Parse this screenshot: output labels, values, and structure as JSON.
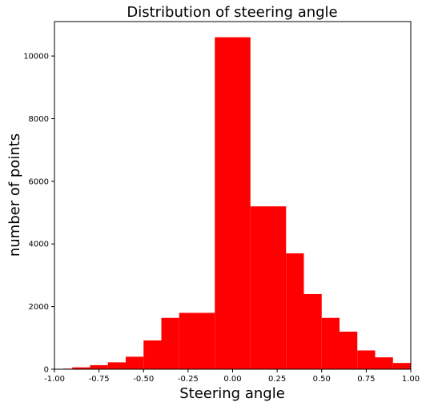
{
  "chart_data": {
    "type": "bar",
    "title": "Distribution of steering angle",
    "xlabel": "Steering angle",
    "ylabel": "number of points",
    "xlim": [
      -1.0,
      1.0
    ],
    "ylim": [
      0,
      11100
    ],
    "xticks": [
      "-1.00",
      "-0.75",
      "-0.50",
      "-0.25",
      "0.00",
      "0.25",
      "0.50",
      "0.75",
      "1.00"
    ],
    "yticks": [
      "0",
      "2000",
      "4000",
      "6000",
      "8000",
      "10000"
    ],
    "bar_color": "#ff0000",
    "grid": false,
    "bins": [
      {
        "x0": -1.0,
        "x1": -0.95,
        "value": 10
      },
      {
        "x0": -0.95,
        "x1": -0.9,
        "value": 20
      },
      {
        "x0": -0.9,
        "x1": -0.8,
        "value": 60
      },
      {
        "x0": -0.8,
        "x1": -0.7,
        "value": 130
      },
      {
        "x0": -0.7,
        "x1": -0.6,
        "value": 220
      },
      {
        "x0": -0.6,
        "x1": -0.5,
        "value": 400
      },
      {
        "x0": -0.5,
        "x1": -0.4,
        "value": 920
      },
      {
        "x0": -0.4,
        "x1": -0.3,
        "value": 1640
      },
      {
        "x0": -0.3,
        "x1": -0.2,
        "value": 1800
      },
      {
        "x0": -0.2,
        "x1": -0.1,
        "value": 1800
      },
      {
        "x0": -0.1,
        "x1": 0.1,
        "value": 10600
      },
      {
        "x0": 0.1,
        "x1": 0.2,
        "value": 5200
      },
      {
        "x0": 0.2,
        "x1": 0.3,
        "value": 5200
      },
      {
        "x0": 0.3,
        "x1": 0.4,
        "value": 3700
      },
      {
        "x0": 0.4,
        "x1": 0.5,
        "value": 2400
      },
      {
        "x0": 0.5,
        "x1": 0.6,
        "value": 1640
      },
      {
        "x0": 0.6,
        "x1": 0.7,
        "value": 1200
      },
      {
        "x0": 0.7,
        "x1": 0.8,
        "value": 600
      },
      {
        "x0": 0.8,
        "x1": 0.9,
        "value": 380
      },
      {
        "x0": 0.9,
        "x1": 1.0,
        "value": 200
      }
    ]
  }
}
